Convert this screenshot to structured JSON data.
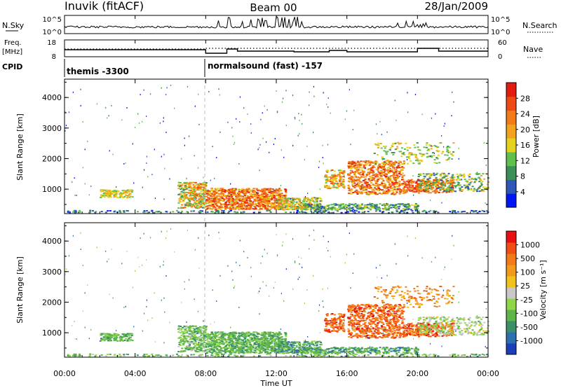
{
  "header": {
    "left_title": "Inuvik (fitACF)",
    "center_title": "Beam 00",
    "date": "28/Jan/2009"
  },
  "nsky_panel": {
    "left_label": "N.Sky",
    "left_ticks": [
      "10^5",
      "10^0"
    ],
    "right_ticks": [
      "10^5",
      "10^0"
    ],
    "right_label": "N.Search"
  },
  "freq_panel": {
    "left_label_line1": "Freq.",
    "left_label_line2": "[MHz]",
    "left_ticks": [
      "18",
      "8"
    ],
    "right_ticks": [
      "60",
      "0"
    ],
    "right_label": "Nave"
  },
  "cpid": {
    "label": "CPID",
    "segments": [
      "themis -3300",
      "normalsound (fast) -157"
    ]
  },
  "chart_data": [
    {
      "type": "heatmap",
      "quantity": "Power",
      "ylabel": "Slant Range [km]",
      "ylim": [
        200,
        4600
      ],
      "yticks": [
        1000,
        2000,
        3000,
        4000
      ],
      "xlim_hours": [
        0,
        24
      ],
      "colorbar": {
        "label": "Power [dB]",
        "ticks": [
          "4",
          "8",
          "12",
          "16",
          "20",
          "24",
          "28"
        ],
        "colors": [
          "#0016f5",
          "#2f57b8",
          "#3d8f5a",
          "#5fc04e",
          "#e3d31f",
          "#f2a21c",
          "#f27a18",
          "#ee4a14",
          "#e21d10"
        ]
      }
    },
    {
      "type": "heatmap",
      "quantity": "Velocity",
      "ylabel": "Slant Range [km]",
      "ylim": [
        200,
        4600
      ],
      "yticks": [
        1000,
        2000,
        3000,
        4000
      ],
      "xlim_hours": [
        0,
        24
      ],
      "xticks": [
        "00:00",
        "04:00",
        "08:00",
        "12:00",
        "16:00",
        "20:00",
        "00:00"
      ],
      "xlabel": "Time UT",
      "colorbar": {
        "label": "Velocity [m s⁻¹]",
        "ticks": [
          "1000",
          "500",
          "100",
          "25",
          "-25",
          "-100",
          "-500",
          "-1000"
        ],
        "colors": [
          "#1a3fb8",
          "#2d6fb0",
          "#3b8f6a",
          "#5fb54a",
          "#8fd64a",
          "#c8c8c8",
          "#f2c21c",
          "#f29a1c",
          "#f27a18",
          "#f04e14",
          "#e81010"
        ]
      }
    }
  ]
}
